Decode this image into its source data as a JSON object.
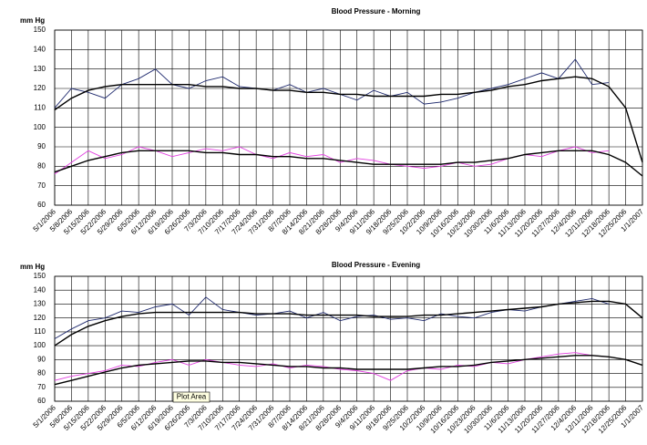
{
  "chart_data": [
    {
      "type": "line",
      "title": "Blood Pressure - Morning",
      "y_label": "mm Hg",
      "categories": [
        "5/1/2006",
        "5/8/2006",
        "5/15/2006",
        "5/22/2006",
        "5/29/2006",
        "6/5/2006",
        "6/12/2006",
        "6/19/2006",
        "6/26/2006",
        "7/3/2006",
        "7/10/2006",
        "7/17/2006",
        "7/24/2006",
        "7/31/2006",
        "8/7/2006",
        "8/14/2006",
        "8/21/2006",
        "8/28/2006",
        "9/4/2006",
        "9/11/2006",
        "9/18/2006",
        "9/25/2006",
        "10/2/2006",
        "10/9/2006",
        "10/16/2006",
        "10/23/2006",
        "10/30/2006",
        "11/6/2006",
        "11/13/2006",
        "11/20/2006",
        "11/27/2006",
        "12/4/2006",
        "12/11/2006",
        "12/18/2006",
        "12/25/2006",
        "1/1/2007"
      ],
      "series": [
        {
          "color": "#1f2a6e",
          "values": [
            110,
            120,
            118,
            115,
            122,
            125,
            130,
            122,
            120,
            124,
            126,
            121,
            120,
            119,
            122,
            118,
            120,
            117,
            114,
            119,
            116,
            118,
            112,
            113,
            115,
            118,
            120,
            122,
            125,
            128,
            125,
            135,
            122,
            123,
            null,
            null
          ]
        },
        {
          "color": "#000000",
          "values": [
            109,
            115,
            119,
            121,
            122,
            122,
            122,
            122,
            122,
            121,
            121,
            120,
            120,
            119,
            119,
            118,
            118,
            117,
            117,
            116,
            116,
            116,
            116,
            117,
            117,
            118,
            119,
            121,
            122,
            124,
            125,
            126,
            125,
            121,
            110,
            82
          ]
        },
        {
          "color": "#e23fe0",
          "values": [
            76,
            82,
            88,
            84,
            86,
            90,
            88,
            85,
            87,
            89,
            88,
            90,
            86,
            84,
            87,
            85,
            86,
            82,
            84,
            83,
            81,
            80,
            79,
            80,
            82,
            80,
            81,
            84,
            86,
            85,
            88,
            90,
            87,
            88,
            null,
            null
          ]
        },
        {
          "color": "#000000",
          "values": [
            77,
            80,
            83,
            85,
            87,
            88,
            88,
            88,
            88,
            87,
            87,
            86,
            86,
            85,
            85,
            84,
            84,
            83,
            82,
            81,
            81,
            81,
            81,
            81,
            82,
            82,
            83,
            84,
            86,
            87,
            88,
            88,
            88,
            86,
            82,
            75
          ]
        }
      ],
      "ylim": [
        60,
        150
      ],
      "yticks": [
        60,
        70,
        80,
        90,
        100,
        110,
        120,
        130,
        140,
        150
      ],
      "grid": true
    },
    {
      "type": "line",
      "title": "Blood Pressure - Evening",
      "y_label": "mm Hg",
      "annotation": "Plot Area",
      "categories": [
        "5/1/2006",
        "5/8/2006",
        "5/15/2006",
        "5/22/2006",
        "5/29/2006",
        "6/5/2006",
        "6/12/2006",
        "6/19/2006",
        "6/26/2006",
        "7/3/2006",
        "7/10/2006",
        "7/17/2006",
        "7/24/2006",
        "7/31/2006",
        "8/7/2006",
        "8/14/2006",
        "8/21/2006",
        "8/28/2006",
        "9/4/2006",
        "9/11/2006",
        "9/18/2006",
        "9/25/2006",
        "10/2/2006",
        "10/9/2006",
        "10/16/2006",
        "10/23/2006",
        "10/30/2006",
        "11/6/2006",
        "11/13/2006",
        "11/20/2006",
        "11/27/2006",
        "12/4/2006",
        "12/11/2006",
        "12/18/2006",
        "12/25/2006",
        "1/1/2007"
      ],
      "series": [
        {
          "color": "#1f2a6e",
          "values": [
            105,
            112,
            118,
            120,
            125,
            124,
            128,
            130,
            122,
            135,
            126,
            124,
            122,
            123,
            125,
            120,
            124,
            118,
            121,
            122,
            119,
            120,
            118,
            123,
            121,
            120,
            124,
            126,
            125,
            128,
            130,
            132,
            134,
            130,
            null,
            null
          ]
        },
        {
          "color": "#000000",
          "values": [
            100,
            108,
            114,
            118,
            121,
            123,
            124,
            124,
            124,
            124,
            124,
            124,
            123,
            123,
            123,
            122,
            122,
            122,
            122,
            121,
            121,
            121,
            122,
            122,
            123,
            124,
            125,
            126,
            127,
            128,
            130,
            131,
            132,
            132,
            130,
            120
          ]
        },
        {
          "color": "#e23fe0",
          "values": [
            75,
            78,
            80,
            82,
            86,
            85,
            88,
            90,
            86,
            90,
            88,
            86,
            85,
            87,
            84,
            86,
            85,
            83,
            82,
            80,
            75,
            82,
            84,
            83,
            86,
            85,
            88,
            87,
            90,
            92,
            94,
            95,
            93,
            92,
            null,
            null
          ]
        },
        {
          "color": "#000000",
          "values": [
            72,
            75,
            78,
            81,
            84,
            86,
            87,
            88,
            89,
            89,
            88,
            88,
            87,
            86,
            85,
            85,
            84,
            84,
            83,
            83,
            83,
            83,
            84,
            85,
            85,
            86,
            88,
            89,
            90,
            91,
            92,
            93,
            93,
            92,
            90,
            86
          ]
        }
      ],
      "ylim": [
        60,
        150
      ],
      "yticks": [
        60,
        70,
        80,
        90,
        100,
        110,
        120,
        130,
        140,
        150
      ],
      "grid": true
    }
  ]
}
